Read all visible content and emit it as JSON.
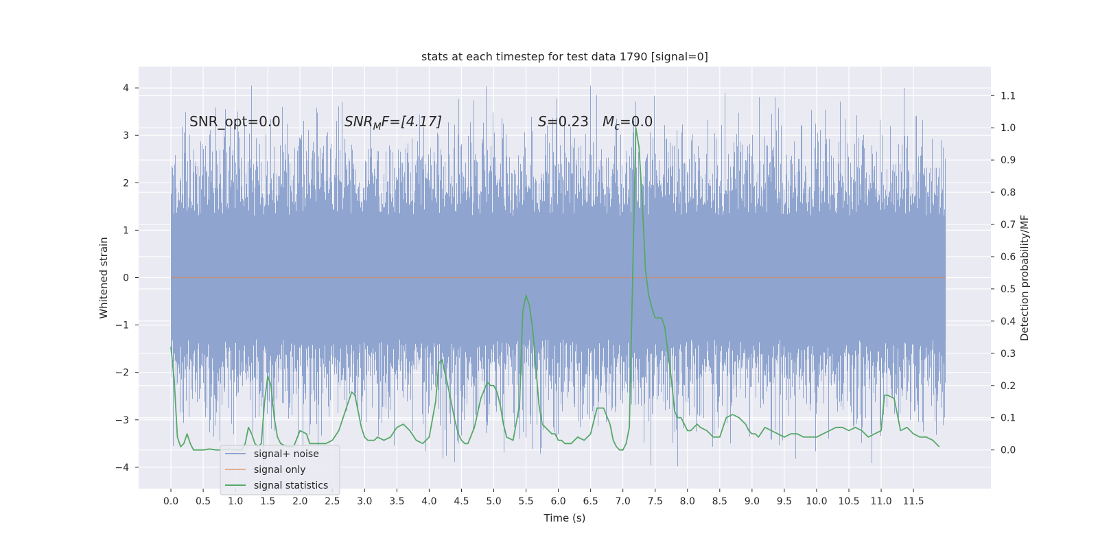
{
  "chart_data": {
    "type": "line",
    "title": "stats at each timestep for test data 1790 [signal=0]",
    "xlabel": "Time (s)",
    "ylabel": "Whitened strain",
    "ylabel_right": "Detection probability/MF",
    "xlim": [
      -0.5,
      12.7
    ],
    "ylim": [
      -4.45,
      4.45
    ],
    "ylim_right": [
      -0.12,
      1.19
    ],
    "x_ticks": [
      0.0,
      0.5,
      1.0,
      1.5,
      2.0,
      2.5,
      3.0,
      3.5,
      4.0,
      4.5,
      5.0,
      5.5,
      6.0,
      6.5,
      7.0,
      7.5,
      8.0,
      8.5,
      9.0,
      9.5,
      10.0,
      10.5,
      11.0,
      11.5
    ],
    "x_tick_labels": [
      "0.0",
      "0.5",
      "1.0",
      "1.5",
      "2.0",
      "2.5",
      "3.0",
      "3.5",
      "4.0",
      "4.5",
      "5.0",
      "5.5",
      "6.0",
      "6.5",
      "7.0",
      "7.5",
      "8.0",
      "8.5",
      "9.0",
      "9.5",
      "10.0",
      "10.5",
      "11.0",
      "11.5"
    ],
    "y_ticks": [
      -4,
      -3,
      -2,
      -1,
      0,
      1,
      2,
      3,
      4
    ],
    "y_tick_labels": [
      "−4",
      "−3",
      "−2",
      "−1",
      "0",
      "1",
      "2",
      "3",
      "4"
    ],
    "y_ticks_right": [
      0.0,
      0.1,
      0.2,
      0.3,
      0.4,
      0.5,
      0.6,
      0.7,
      0.8,
      0.9,
      1.0,
      1.1
    ],
    "y_tick_labels_right": [
      "0.0",
      "0.1",
      "0.2",
      "0.3",
      "0.4",
      "0.5",
      "0.6",
      "0.7",
      "0.8",
      "0.9",
      "1.0",
      "1.1"
    ],
    "grid": true,
    "legend_position": "lower-left",
    "annotations": {
      "snr_opt": "SNR_opt=0.0",
      "snr_mf_base": "SNR",
      "snr_mf_sub": "M",
      "snr_mf_rest": "F=[4.17]",
      "s_label": "S",
      "s_value": "=0.23",
      "mc_base": "M",
      "mc_sub": "c",
      "mc_value": "=0.0"
    },
    "series": [
      {
        "name": "signal+ noise",
        "color": "#8fa5cf",
        "axis": "left",
        "style": "noise-band",
        "x_range": [
          0.0,
          12.0
        ],
        "band_typical": [
          -1.3,
          1.3
        ],
        "band_peak": [
          -4.1,
          4.05
        ]
      },
      {
        "name": "signal only",
        "color": "#dd8452",
        "axis": "left",
        "x": [
          0.0,
          12.0
        ],
        "y": [
          0.0,
          0.0
        ]
      },
      {
        "name": "signal statistics",
        "color": "#55a868",
        "axis": "right",
        "x": [
          0.0,
          0.05,
          0.1,
          0.15,
          0.2,
          0.25,
          0.3,
          0.35,
          0.4,
          0.45,
          0.5,
          0.6,
          0.7,
          0.8,
          0.9,
          1.0,
          1.1,
          1.15,
          1.2,
          1.25,
          1.3,
          1.35,
          1.4,
          1.45,
          1.5,
          1.55,
          1.6,
          1.65,
          1.7,
          1.8,
          1.9,
          2.0,
          2.1,
          2.15,
          2.2,
          2.25,
          2.3,
          2.4,
          2.5,
          2.6,
          2.7,
          2.8,
          2.85,
          2.9,
          2.95,
          3.0,
          3.05,
          3.1,
          3.15,
          3.2,
          3.3,
          3.4,
          3.5,
          3.6,
          3.7,
          3.8,
          3.9,
          4.0,
          4.1,
          4.15,
          4.2,
          4.3,
          4.35,
          4.4,
          4.45,
          4.5,
          4.55,
          4.6,
          4.7,
          4.8,
          4.9,
          4.95,
          5.0,
          5.05,
          5.1,
          5.15,
          5.2,
          5.3,
          5.4,
          5.45,
          5.5,
          5.55,
          5.6,
          5.65,
          5.7,
          5.75,
          5.8,
          5.85,
          5.9,
          5.95,
          6.0,
          6.05,
          6.1,
          6.2,
          6.3,
          6.4,
          6.5,
          6.6,
          6.7,
          6.8,
          6.85,
          6.9,
          6.95,
          7.0,
          7.05,
          7.1,
          7.15,
          7.2,
          7.25,
          7.3,
          7.35,
          7.4,
          7.45,
          7.5,
          7.55,
          7.6,
          7.65,
          7.7,
          7.75,
          7.8,
          7.85,
          7.9,
          7.95,
          8.0,
          8.05,
          8.1,
          8.15,
          8.2,
          8.3,
          8.4,
          8.5,
          8.6,
          8.7,
          8.8,
          8.9,
          8.95,
          9.0,
          9.05,
          9.1,
          9.2,
          9.3,
          9.4,
          9.5,
          9.6,
          9.7,
          9.8,
          9.9,
          10.0,
          10.1,
          10.2,
          10.3,
          10.4,
          10.5,
          10.6,
          10.7,
          10.8,
          10.9,
          11.0,
          11.05,
          11.1,
          11.2,
          11.25,
          11.3,
          11.4,
          11.5,
          11.6,
          11.7,
          11.8,
          11.9
        ],
        "y": [
          0.32,
          0.22,
          0.04,
          0.01,
          0.02,
          0.05,
          0.02,
          0.0,
          0.0,
          0.0,
          0.0,
          0.003,
          0.0,
          0.0,
          0.003,
          0.0,
          0.0,
          0.02,
          0.07,
          0.05,
          0.02,
          0.01,
          0.02,
          0.15,
          0.23,
          0.2,
          0.1,
          0.04,
          0.02,
          0.01,
          0.01,
          0.06,
          0.05,
          0.02,
          0.02,
          0.02,
          0.02,
          0.02,
          0.03,
          0.06,
          0.12,
          0.18,
          0.17,
          0.12,
          0.07,
          0.04,
          0.03,
          0.03,
          0.03,
          0.04,
          0.03,
          0.04,
          0.07,
          0.08,
          0.06,
          0.03,
          0.02,
          0.04,
          0.15,
          0.27,
          0.28,
          0.19,
          0.14,
          0.09,
          0.05,
          0.03,
          0.02,
          0.02,
          0.07,
          0.16,
          0.21,
          0.2,
          0.2,
          0.18,
          0.14,
          0.08,
          0.04,
          0.03,
          0.14,
          0.43,
          0.48,
          0.45,
          0.38,
          0.26,
          0.14,
          0.08,
          0.07,
          0.06,
          0.05,
          0.05,
          0.03,
          0.03,
          0.02,
          0.02,
          0.04,
          0.03,
          0.05,
          0.13,
          0.13,
          0.08,
          0.03,
          0.01,
          0.0,
          0.0,
          0.02,
          0.07,
          0.52,
          1.0,
          0.94,
          0.77,
          0.56,
          0.48,
          0.44,
          0.41,
          0.41,
          0.41,
          0.38,
          0.3,
          0.22,
          0.12,
          0.1,
          0.1,
          0.08,
          0.06,
          0.06,
          0.07,
          0.08,
          0.07,
          0.06,
          0.04,
          0.04,
          0.1,
          0.11,
          0.1,
          0.08,
          0.06,
          0.05,
          0.05,
          0.04,
          0.07,
          0.06,
          0.05,
          0.04,
          0.05,
          0.05,
          0.04,
          0.04,
          0.04,
          0.05,
          0.06,
          0.07,
          0.07,
          0.06,
          0.07,
          0.06,
          0.04,
          0.05,
          0.06,
          0.17,
          0.17,
          0.16,
          0.11,
          0.06,
          0.07,
          0.05,
          0.04,
          0.04,
          0.03,
          0.01
        ]
      }
    ]
  }
}
